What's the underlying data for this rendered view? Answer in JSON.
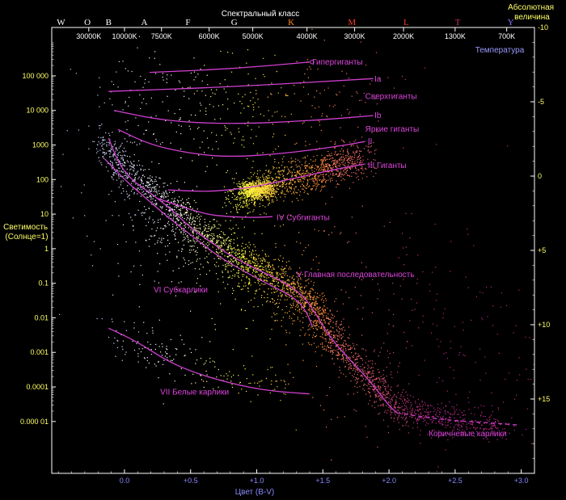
{
  "chart_data": {
    "type": "scatter",
    "title": "Спектральный класс",
    "xlabel": "Цвет (B-V)",
    "ylabel": "Светимость\n(Солнце=1)",
    "y2label": "Абсолютная\nвеличина",
    "temperature_label": "Температура",
    "xlim": [
      -0.55,
      3.1
    ],
    "ylim_log10": [
      -6.5,
      6.4
    ],
    "y2lim": [
      -10,
      20
    ],
    "x_ticks": [
      {
        "value": 0.0,
        "label": "0.0"
      },
      {
        "value": 0.5,
        "label": "+0.5"
      },
      {
        "value": 1.0,
        "label": "+1.0"
      },
      {
        "value": 1.5,
        "label": "+1.5"
      },
      {
        "value": 2.0,
        "label": "+2.0"
      },
      {
        "value": 2.5,
        "label": "+2.5"
      },
      {
        "value": 3.0,
        "label": "+3.0"
      }
    ],
    "y_ticks": [
      {
        "value": 100000,
        "label": "100 000"
      },
      {
        "value": 10000,
        "label": "10 000"
      },
      {
        "value": 1000,
        "label": "1000"
      },
      {
        "value": 100,
        "label": "100"
      },
      {
        "value": 10,
        "label": "10"
      },
      {
        "value": 1,
        "label": "1"
      },
      {
        "value": 0.1,
        "label": "0.1"
      },
      {
        "value": 0.01,
        "label": "0.01"
      },
      {
        "value": 0.001,
        "label": "0.001"
      },
      {
        "value": 0.0001,
        "label": "0.0001"
      },
      {
        "value": 1e-05,
        "label": "0.000 01"
      }
    ],
    "y2_ticks": [
      {
        "value": -10,
        "label": "-10"
      },
      {
        "value": -5,
        "label": "-5"
      },
      {
        "value": 0,
        "label": "0"
      },
      {
        "value": 5,
        "label": "+5"
      },
      {
        "value": 10,
        "label": "+10"
      },
      {
        "value": 15,
        "label": "+15"
      }
    ],
    "spectral_classes": [
      {
        "label": "W",
        "x": -0.48,
        "color": "#ffffff"
      },
      {
        "label": "O",
        "x": -0.28,
        "color": "#ffffff"
      },
      {
        "label": "B",
        "x": -0.12,
        "color": "#ffffff"
      },
      {
        "label": "A",
        "x": 0.15,
        "color": "#ffffff"
      },
      {
        "label": "F",
        "x": 0.48,
        "color": "#ffffff"
      },
      {
        "label": "G",
        "x": 0.83,
        "color": "#ffffff"
      },
      {
        "label": "K",
        "x": 1.26,
        "color": "#ff8a1a"
      },
      {
        "label": "M",
        "x": 1.72,
        "color": "#ff3a2a"
      },
      {
        "label": "L",
        "x": 2.13,
        "color": "#ff3a2a"
      },
      {
        "label": "T",
        "x": 2.52,
        "color": "#cc3060"
      },
      {
        "label": "Y",
        "x": 2.92,
        "color": "#8a70ff"
      }
    ],
    "temperatures": [
      {
        "label": "30000K",
        "x": -0.27
      },
      {
        "label": "10000K",
        "x": 0.0
      },
      {
        "label": "7500K",
        "x": 0.28
      },
      {
        "label": "6000K",
        "x": 0.64
      },
      {
        "label": "5000K",
        "x": 0.97
      },
      {
        "label": "4000K",
        "x": 1.38
      },
      {
        "label": "3000K",
        "x": 1.74
      },
      {
        "label": "2000K",
        "x": 2.11
      },
      {
        "label": "1300K",
        "x": 2.5
      },
      {
        "label": "700K",
        "x": 2.89
      }
    ],
    "luminosity_classes": [
      {
        "name": "Гипергиганты",
        "points": [
          [
            0.19,
            5.1
          ],
          [
            0.8,
            5.2
          ],
          [
            1.4,
            5.4
          ]
        ],
        "marker": "circle-end",
        "dashed": false
      },
      {
        "name": "Ia",
        "points": [
          [
            -0.12,
            4.55
          ],
          [
            0.8,
            4.68
          ],
          [
            1.88,
            4.92
          ]
        ],
        "dashed": false
      },
      {
        "name": "Ib",
        "points": [
          [
            -0.08,
            4.0
          ],
          [
            0.3,
            3.7
          ],
          [
            0.8,
            3.6
          ],
          [
            1.4,
            3.7
          ],
          [
            1.88,
            3.85
          ]
        ],
        "dashed": false
      },
      {
        "name": "II",
        "points": [
          [
            -0.05,
            3.45
          ],
          [
            0.2,
            3.0
          ],
          [
            0.5,
            2.75
          ],
          [
            0.8,
            2.65
          ],
          [
            1.2,
            2.75
          ],
          [
            1.6,
            2.95
          ],
          [
            1.82,
            3.1
          ]
        ],
        "dashed": false
      },
      {
        "name": "III",
        "points": [
          [
            0.33,
            1.7
          ],
          [
            0.6,
            1.65
          ],
          [
            0.8,
            1.7
          ],
          [
            1.0,
            1.8
          ],
          [
            1.3,
            2.05
          ],
          [
            1.6,
            2.3
          ],
          [
            1.82,
            2.45
          ]
        ],
        "dashed": false
      },
      {
        "name": "IV",
        "points": [
          [
            0.25,
            1.45
          ],
          [
            0.6,
            1.0
          ],
          [
            0.8,
            0.92
          ],
          [
            1.0,
            0.9
          ],
          [
            1.12,
            0.93
          ]
        ],
        "dashed": false
      },
      {
        "name": "V",
        "points": [
          [
            -0.12,
            3.2
          ],
          [
            -0.05,
            2.5
          ],
          [
            0.05,
            2.0
          ],
          [
            0.2,
            1.6
          ],
          [
            0.35,
            1.15
          ],
          [
            0.5,
            0.6
          ],
          [
            0.65,
            0.2
          ],
          [
            0.8,
            -0.2
          ],
          [
            1.0,
            -0.6
          ],
          [
            1.2,
            -0.95
          ],
          [
            1.35,
            -1.35
          ],
          [
            1.45,
            -1.9
          ],
          [
            1.55,
            -2.55
          ],
          [
            1.7,
            -3.2
          ],
          [
            1.85,
            -3.8
          ],
          [
            2.0,
            -4.55
          ],
          [
            2.06,
            -4.75
          ]
        ],
        "dashed": false
      },
      {
        "name": "V-brown",
        "points": [
          [
            2.06,
            -4.75
          ],
          [
            2.4,
            -4.95
          ],
          [
            2.8,
            -5.05
          ],
          [
            2.97,
            -5.1
          ]
        ],
        "dashed": true
      },
      {
        "name": "VI",
        "points": [
          [
            -0.15,
            2.6
          ],
          [
            0.0,
            2.0
          ],
          [
            0.15,
            1.5
          ],
          [
            0.3,
            1.0
          ],
          [
            0.5,
            0.4
          ],
          [
            0.7,
            -0.2
          ],
          [
            0.9,
            -0.65
          ],
          [
            1.1,
            -1.05
          ],
          [
            1.3,
            -1.45
          ],
          [
            1.38,
            -1.85
          ],
          [
            1.42,
            -2.25
          ]
        ],
        "dashed": false
      },
      {
        "name": "VII",
        "points": [
          [
            -0.12,
            -2.3
          ],
          [
            0.1,
            -2.7
          ],
          [
            0.3,
            -3.2
          ],
          [
            0.5,
            -3.55
          ],
          [
            0.8,
            -3.9
          ],
          [
            1.1,
            -4.12
          ],
          [
            1.4,
            -4.2
          ]
        ],
        "dashed": false
      }
    ],
    "labels": [
      {
        "text": "Гипергиганты",
        "x": 1.42,
        "y_log": 5.4
      },
      {
        "text": "Ia",
        "x": 1.89,
        "y_log": 4.9
      },
      {
        "text": "Сверхгиганты",
        "x": 1.82,
        "y_log": 4.4
      },
      {
        "text": "Ib",
        "x": 1.89,
        "y_log": 3.85
      },
      {
        "text": "Яркие гиганты",
        "x": 1.82,
        "y_log": 3.45
      },
      {
        "text": "II",
        "x": 1.84,
        "y_log": 3.1
      },
      {
        "text": "III   Гиганты",
        "x": 1.84,
        "y_log": 2.4
      },
      {
        "text": "IV   Субгиганты",
        "x": 1.15,
        "y_log": 0.9
      },
      {
        "text": "V  Главная последовательность",
        "x": 1.3,
        "y_log": -0.75
      },
      {
        "text": "VI   Субкарлики",
        "x": 0.22,
        "y_log": -1.2
      },
      {
        "text": "VII   Белые карлики",
        "x": 0.27,
        "y_log": -4.15
      },
      {
        "text": "Коричневые карлики",
        "x": 2.3,
        "y_log": -5.35
      }
    ],
    "star_regions": [
      {
        "name": "main-sequence",
        "path": [
          [
            -0.15,
            3.1
          ],
          [
            0.0,
            2.3
          ],
          [
            0.2,
            1.7
          ],
          [
            0.4,
            1.1
          ],
          [
            0.6,
            0.45
          ],
          [
            0.8,
            -0.05
          ],
          [
            1.0,
            -0.5
          ],
          [
            1.2,
            -0.9
          ],
          [
            1.35,
            -1.35
          ],
          [
            1.45,
            -1.85
          ],
          [
            1.55,
            -2.5
          ],
          [
            1.7,
            -3.15
          ],
          [
            1.85,
            -3.75
          ],
          [
            2.0,
            -4.4
          ],
          [
            2.2,
            -4.8
          ],
          [
            2.5,
            -4.95
          ],
          [
            2.85,
            -5.1
          ]
        ],
        "spread": 0.22,
        "count": 2600
      },
      {
        "name": "red-clump",
        "path": [
          [
            0.9,
            1.72
          ],
          [
            1.0,
            1.7
          ],
          [
            1.1,
            1.75
          ]
        ],
        "spread": 0.12,
        "count": 700
      },
      {
        "name": "giant-branch",
        "path": [
          [
            0.85,
            1.4
          ],
          [
            1.1,
            1.85
          ],
          [
            1.35,
            2.1
          ],
          [
            1.6,
            2.4
          ],
          [
            1.8,
            2.7
          ]
        ],
        "spread": 0.25,
        "count": 1100
      },
      {
        "name": "supergiants",
        "path": [
          [
            -0.15,
            4.2
          ],
          [
            0.5,
            4.0
          ],
          [
            1.2,
            4.1
          ],
          [
            1.8,
            4.4
          ]
        ],
        "spread": 0.9,
        "count": 380
      },
      {
        "name": "subdwarfs",
        "path": [
          [
            0.0,
            1.3
          ],
          [
            0.5,
            0.0
          ],
          [
            1.0,
            -1.0
          ],
          [
            1.4,
            -1.9
          ]
        ],
        "spread": 0.35,
        "count": 350
      },
      {
        "name": "white-dwarfs",
        "path": [
          [
            -0.1,
            -2.4
          ],
          [
            0.3,
            -3.1
          ],
          [
            0.8,
            -3.7
          ],
          [
            1.3,
            -4.0
          ]
        ],
        "spread": 0.3,
        "count": 180
      },
      {
        "name": "field",
        "path": [
          [
            0.0,
            2.0
          ],
          [
            1.0,
            0.0
          ],
          [
            2.0,
            -2.0
          ],
          [
            2.8,
            -4.0
          ]
        ],
        "spread": 1.8,
        "count": 520
      }
    ]
  }
}
